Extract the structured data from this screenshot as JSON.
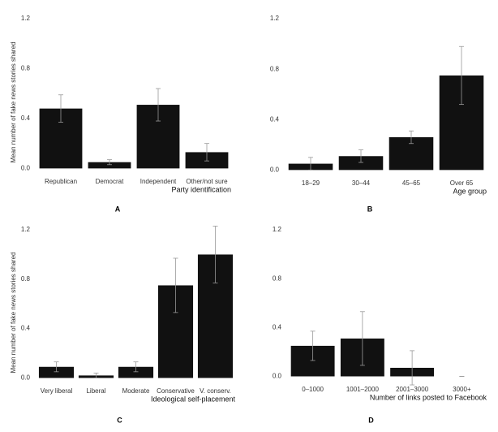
{
  "chart_data": [
    {
      "type": "bar",
      "label": "A",
      "y_label": "Mean number of fake news stories shared",
      "x_label": "Party identification",
      "categories": [
        "Republican",
        "Democrat",
        "Independent",
        "Other/not sure"
      ],
      "values": [
        0.48,
        0.05,
        0.51,
        0.13
      ],
      "errors": [
        0.11,
        0.02,
        0.13,
        0.07
      ],
      "color": "#111111",
      "ylim": [
        -0.03,
        1.22
      ],
      "yticks": [
        {
          "value": 0,
          "label": "0.0"
        },
        0.4,
        0.8,
        1.2
      ]
    },
    {
      "type": "bar",
      "label": "B",
      "x_label": "Age group",
      "categories": [
        "18–29",
        "30–44",
        "45–65",
        "Over 65"
      ],
      "values": [
        0.05,
        0.11,
        0.26,
        0.75
      ],
      "errors": [
        0.05,
        0.05,
        0.05,
        0.23
      ],
      "color": "#111111",
      "ylim": [
        -0.03,
        1.22
      ],
      "yticks": [
        {
          "value": 0,
          "label": "0.0"
        },
        0.4,
        0.8,
        1.2
      ]
    },
    {
      "type": "bar",
      "label": "C",
      "y_label": "Mean number of fake news stories shared",
      "x_label": "Ideological self-placement",
      "categories": [
        "Very liberal",
        "Liberal",
        "Moderate",
        "Conservative",
        "V. conserv."
      ],
      "values": [
        0.09,
        0.02,
        0.09,
        0.75,
        1.0
      ],
      "errors": [
        0.04,
        0.02,
        0.04,
        0.22,
        0.23
      ],
      "color": "#111111",
      "ylim": [
        -0.03,
        1.22
      ],
      "yticks": [
        {
          "value": 0,
          "label": "0.0"
        },
        0.4,
        0.8,
        1.2
      ]
    },
    {
      "type": "bar",
      "label": "D",
      "x_label": "Number of links posted to Facebook",
      "categories": [
        "0–1000",
        "1001–2000",
        "2001–3000",
        "3000+"
      ],
      "values": [
        0.25,
        0.31,
        0.07,
        0
      ],
      "errors": [
        0.12,
        0.22,
        0.14,
        0
      ],
      "color": "#111111",
      "ylim": [
        -0.03,
        1.22
      ],
      "yticks": [
        {
          "value": 0,
          "label": "0.0"
        },
        0.4,
        0.8,
        1.2
      ]
    }
  ]
}
